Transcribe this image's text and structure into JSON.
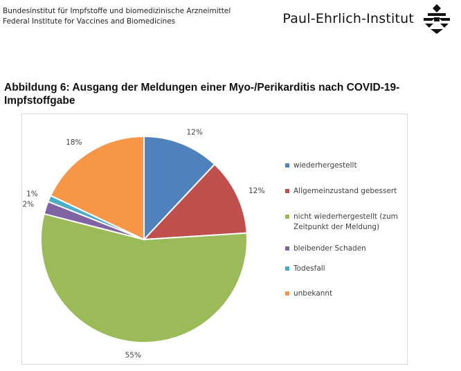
{
  "header": {
    "institute_de": "Bundesinstitut für Impfstoffe und biomedizinische Arzneimittel",
    "institute_en": "Federal Institute for Vaccines and Biomedicines",
    "logo_text": "Paul-Ehrlich-Institut"
  },
  "figure": {
    "title": "Abbildung 6: Ausgang der Meldungen einer Myo-/Perikarditis nach COVID-19- Impfstoffgabe"
  },
  "chart_data": {
    "type": "pie",
    "title": "Abbildung 6: Ausgang der Meldungen einer Myo-/Perikarditis nach COVID-19- Impfstoffgabe",
    "categories": [
      "wiederhergestellt",
      "Allgemeinzustand gebessert",
      "nicht wiederhergestellt (zum Zeitpunkt der Meldung)",
      "bleibender Schaden",
      "Todesfall",
      "unbekannt"
    ],
    "values": [
      12,
      12,
      55,
      2,
      1,
      18
    ],
    "labels": [
      "12%",
      "12%",
      "55%",
      "2%",
      "1%",
      "18%"
    ],
    "colors": [
      "#4F81BD",
      "#C0504D",
      "#9BBB59",
      "#8064A2",
      "#4BACC6",
      "#F79646"
    ],
    "legend_position": "right",
    "start_angle": "12 o'clock, clockwise"
  }
}
